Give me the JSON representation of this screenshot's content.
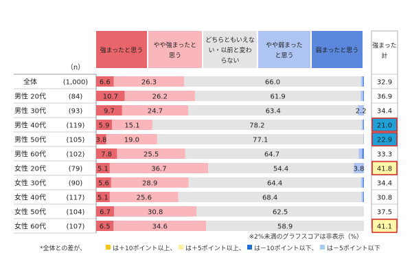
{
  "chart_data": {
    "type": "bar",
    "stacked": true,
    "orientation": "horizontal",
    "n_header": "（n）",
    "categories": [
      "全体",
      "男性 20代",
      "男性 30代",
      "男性 40代",
      "男性 50代",
      "男性 60代",
      "女性 20代",
      "女性 30代",
      "女性 40代",
      "女性 50代",
      "女性 60代"
    ],
    "n": [
      "(1,000)",
      "(84)",
      "(93)",
      "(119)",
      "(105)",
      "(102)",
      "(79)",
      "(90)",
      "(117)",
      "(104)",
      "(107)"
    ],
    "series": [
      {
        "name": "強まったと思う",
        "color": "#e8666b",
        "text_color": "#ffffff",
        "values": [
          6.6,
          10.7,
          9.7,
          5.9,
          3.8,
          7.8,
          5.1,
          5.6,
          5.1,
          6.7,
          6.5
        ]
      },
      {
        "name": "やや強まったと思う",
        "color": "#f9b7bb",
        "text_color": "#222222",
        "values": [
          26.3,
          26.2,
          24.7,
          15.1,
          19.0,
          25.5,
          36.7,
          28.9,
          25.6,
          30.8,
          34.6
        ]
      },
      {
        "name": "どちらともいえない・以前と変わらない",
        "color": "#e4e4e4",
        "text_color": "#222222",
        "values": [
          66.0,
          61.9,
          63.4,
          78.2,
          77.1,
          64.7,
          54.4,
          64.4,
          68.4,
          62.5,
          58.9
        ]
      },
      {
        "name": "やや弱まったと思う",
        "color": "#aec4f2",
        "text_color": "#222222",
        "values": [
          0.7,
          0.9,
          2.2,
          0.5,
          0.0,
          1.3,
          3.8,
          0.7,
          0.6,
          0.0,
          0.0
        ]
      },
      {
        "name": "弱まったと思う",
        "color": "#5b87dc",
        "text_color": "#ffffff",
        "values": [
          0.4,
          0.3,
          0.0,
          0.3,
          0.1,
          0.7,
          0.0,
          0.4,
          0.3,
          0.0,
          0.0
        ]
      }
    ],
    "header_labels": [
      [
        "強まったと思う"
      ],
      [
        "やや強まったと",
        "思う"
      ],
      [
        "どちらともいえな",
        "い・以前と変わ",
        "らない"
      ],
      [
        "やや弱まった",
        "と思う"
      ],
      [
        "弱まったと思う"
      ]
    ],
    "summary_header": [
      "強まった",
      "計"
    ],
    "summary": [
      "32.9",
      "36.9",
      "34.4",
      "21.0",
      "22.9",
      "33.3",
      "41.8",
      "34.4",
      "30.8",
      "37.5",
      "41.1"
    ],
    "summary_highlight": [
      "none",
      "none",
      "none",
      "blue",
      "blue",
      "none",
      "yellow",
      "none",
      "none",
      "none",
      "yellow"
    ],
    "highlight_colors": {
      "blue": "#1ea0d8",
      "yellow": "#fff8a8",
      "blue_border": "#e02020",
      "yellow_border": "#e02020"
    },
    "xlim": [
      0,
      100
    ]
  },
  "footnote": "※2%未満のグラフスコアは非表示（%）",
  "legend_note": {
    "prefix": "*全体との差が、",
    "items": [
      {
        "color": "#f5c518",
        "text": "は＋10ポイント以上、"
      },
      {
        "color": "#fdf0a0",
        "text": "は＋5ポイント以上、"
      },
      {
        "color": "#1e6fd6",
        "text": "は－10ポイント以下、"
      },
      {
        "color": "#a9cdf2",
        "text": "は－5ポイント以下"
      }
    ]
  }
}
